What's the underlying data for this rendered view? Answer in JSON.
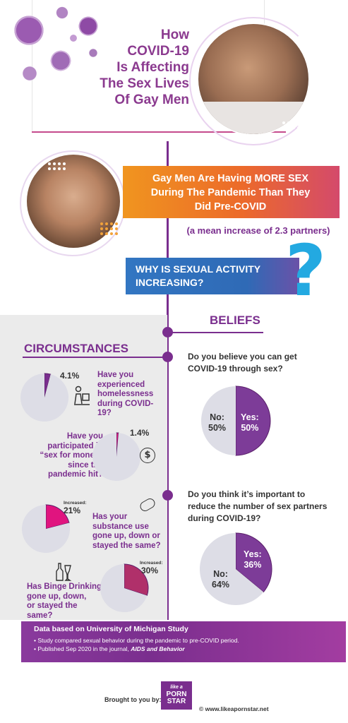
{
  "header": {
    "title_lines": [
      "How",
      "COVID-19",
      "Is Affecting",
      "The Sex Lives",
      "Of Gay Men"
    ]
  },
  "banner": {
    "lines": [
      "Gay Men Are Having MORE SEX",
      "During The Pandemic Than They",
      "Did Pre-COVID"
    ],
    "subtitle": "(a mean increase of 2.3 partners)"
  },
  "why": {
    "lines": [
      "WHY IS SEXUAL ACTIVITY",
      "INCREASING?"
    ],
    "mark": "?"
  },
  "sections": {
    "beliefs": "BELIEFS",
    "circumstances": "CIRCUMSTANCES"
  },
  "chart_data": [
    {
      "type": "pie",
      "section": "CIRCUMSTANCES",
      "question": "Have you experienced homelessness during COVID-19?",
      "question_lines": [
        "Have you",
        "experienced",
        "homelessness",
        "during COVID-19?"
      ],
      "value_label": "4.1%",
      "slices": [
        {
          "label": "",
          "value": 4.1,
          "color": "#7a2e8e"
        },
        {
          "label": "",
          "value": 95.9,
          "color": "#dddde6"
        }
      ]
    },
    {
      "type": "pie",
      "section": "CIRCUMSTANCES",
      "question": "Have you participated in “sex for money” since the pandemic hit?",
      "question_lines": [
        "Have you",
        "participated in",
        "“sex for money”",
        "since the",
        "pandemic hit?"
      ],
      "value_label": "1.4%",
      "slices": [
        {
          "label": "",
          "value": 1.4,
          "color": "#d81b7a"
        },
        {
          "label": "",
          "value": 98.6,
          "color": "#dddde6"
        }
      ]
    },
    {
      "type": "pie",
      "section": "CIRCUMSTANCES",
      "question": "Has your substance use gone up, down or stayed the same?",
      "question_lines": [
        "Has your",
        "substance use",
        "gone up, down or",
        "stayed the same?"
      ],
      "prefix": "Increased:",
      "value_label": "21%",
      "slices": [
        {
          "label": "Increased",
          "value": 21,
          "color": "#e0147f"
        },
        {
          "label": "",
          "value": 79,
          "color": "#dddde6"
        }
      ]
    },
    {
      "type": "pie",
      "section": "CIRCUMSTANCES",
      "question": "Has Binge Drinking gone up, down, or stayed the same?",
      "question_lines": [
        "Has Binge Drinking",
        "gone up, down,",
        "or stayed the same?"
      ],
      "prefix": "Increased:",
      "value_label": "30%",
      "slices": [
        {
          "label": "Increased",
          "value": 30,
          "color": "#b0306a"
        },
        {
          "label": "",
          "value": 70,
          "color": "#dddde6"
        }
      ]
    },
    {
      "type": "pie",
      "section": "BELIEFS",
      "question": "Do you believe you can get COVID-19 through sex?",
      "question_lines": [
        "Do you believe you can get",
        "COVID-19 through sex?"
      ],
      "slices": [
        {
          "label": "Yes:",
          "value": 50,
          "pct": "50%",
          "color": "#7d3c98"
        },
        {
          "label": "No:",
          "value": 50,
          "pct": "50%",
          "color": "#dddde6"
        }
      ]
    },
    {
      "type": "pie",
      "section": "BELIEFS",
      "question": "Do you think it’s important to reduce the number of sex partners during COVID-19?",
      "question_lines": [
        "Do you think it’s important to",
        "reduce the number of sex partners",
        "during COVID-19?"
      ],
      "slices": [
        {
          "label": "Yes:",
          "value": 36,
          "pct": "36%",
          "color": "#7d3c98"
        },
        {
          "label": "No:",
          "value": 64,
          "pct": "64%",
          "color": "#dddde6"
        }
      ]
    }
  ],
  "footer": {
    "title": "Data based on University of Michigan Study",
    "bullet1": "• Study compared sexual behavior during the pandemic to pre-COVID period.",
    "bullet2_prefix": "• Published Sep 2020 in the journal, ",
    "bullet2_journal": "AIDS and Behavior",
    "brought": "Brought to you by:",
    "logo_lines": [
      "like a",
      "PORN",
      "STAR"
    ],
    "website": "© www.likeapornstar.net"
  },
  "colors": {
    "purple": "#7a2e8e",
    "magenta": "#e0147f",
    "orange": "#f07b1e",
    "blue": "#2e67b1",
    "light_grey": "#dddde6",
    "panel_grey": "#ebebeb"
  }
}
